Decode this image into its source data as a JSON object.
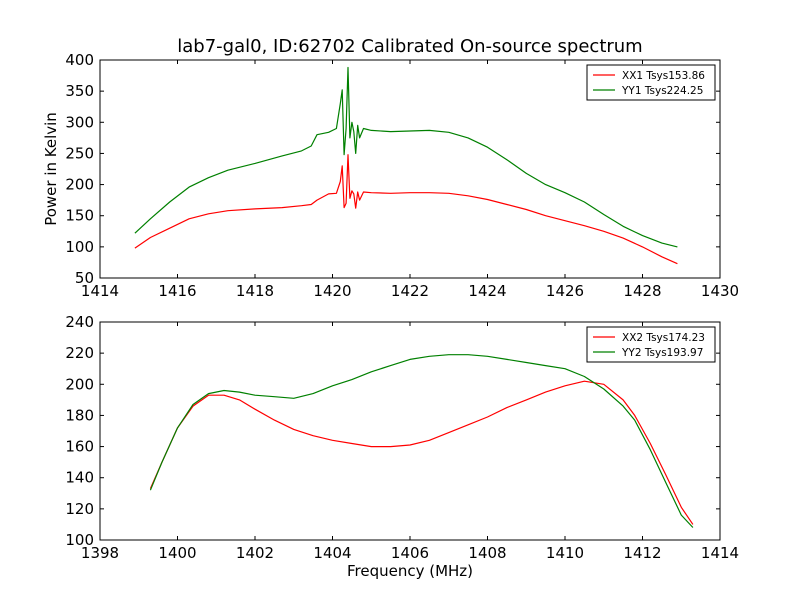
{
  "title": "lab7-gal0, ID:62702 Calibrated On-source spectrum",
  "colors": {
    "red": "#ff0000",
    "green": "#008000"
  },
  "chart_data": [
    {
      "type": "line",
      "title": "lab7-gal0, ID:62702 Calibrated On-source spectrum",
      "xlabel": "",
      "ylabel": "Power in Kelvin",
      "xlim": [
        1414,
        1430
      ],
      "ylim": [
        50,
        400
      ],
      "xticks": [
        1414,
        1416,
        1418,
        1420,
        1422,
        1424,
        1426,
        1428,
        1430
      ],
      "yticks": [
        50,
        100,
        150,
        200,
        250,
        300,
        350,
        400
      ],
      "grid": false,
      "legend_position": "top-right",
      "series": [
        {
          "name": "XX1 Tsys153.86",
          "color": "#ff0000",
          "x": [
            1414.9,
            1415.3,
            1415.8,
            1416.3,
            1416.8,
            1417.3,
            1418.0,
            1418.7,
            1419.2,
            1419.45,
            1419.6,
            1419.9,
            1420.1,
            1420.2,
            1420.25,
            1420.3,
            1420.35,
            1420.4,
            1420.45,
            1420.5,
            1420.55,
            1420.6,
            1420.65,
            1420.7,
            1420.8,
            1421.0,
            1421.5,
            1422.0,
            1422.5,
            1423.0,
            1423.5,
            1424.0,
            1424.5,
            1425.0,
            1425.5,
            1426.0,
            1426.5,
            1427.0,
            1427.5,
            1428.0,
            1428.5,
            1428.9
          ],
          "y": [
            98,
            115,
            130,
            145,
            153,
            158,
            161,
            163,
            166,
            168,
            175,
            185,
            186,
            205,
            230,
            163,
            170,
            248,
            178,
            190,
            185,
            162,
            188,
            175,
            188,
            187,
            186,
            187,
            187,
            186,
            182,
            176,
            168,
            160,
            150,
            142,
            134,
            125,
            114,
            100,
            84,
            73
          ]
        },
        {
          "name": "YY1 Tsys224.25",
          "color": "#008000",
          "x": [
            1414.9,
            1415.3,
            1415.8,
            1416.3,
            1416.8,
            1417.3,
            1418.0,
            1418.7,
            1419.2,
            1419.45,
            1419.6,
            1419.9,
            1420.1,
            1420.2,
            1420.25,
            1420.3,
            1420.35,
            1420.4,
            1420.45,
            1420.5,
            1420.55,
            1420.6,
            1420.65,
            1420.7,
            1420.8,
            1421.0,
            1421.5,
            1422.0,
            1422.5,
            1423.0,
            1423.5,
            1424.0,
            1424.5,
            1425.0,
            1425.5,
            1426.0,
            1426.5,
            1427.0,
            1427.5,
            1428.0,
            1428.5,
            1428.9
          ],
          "y": [
            122,
            145,
            172,
            196,
            211,
            223,
            234,
            246,
            254,
            262,
            280,
            284,
            290,
            330,
            352,
            248,
            290,
            388,
            275,
            300,
            285,
            250,
            295,
            275,
            290,
            287,
            285,
            286,
            287,
            284,
            275,
            260,
            240,
            218,
            200,
            187,
            172,
            152,
            133,
            118,
            106,
            100
          ]
        }
      ]
    },
    {
      "type": "line",
      "title": "",
      "xlabel": "Frequency (MHz)",
      "ylabel": "",
      "xlim": [
        1398,
        1414
      ],
      "ylim": [
        100,
        240
      ],
      "xticks": [
        1398,
        1400,
        1402,
        1404,
        1406,
        1408,
        1410,
        1412,
        1414
      ],
      "yticks": [
        100,
        120,
        140,
        160,
        180,
        200,
        220,
        240
      ],
      "grid": false,
      "legend_position": "top-right",
      "series": [
        {
          "name": "XX2 Tsys174.23",
          "color": "#ff0000",
          "x": [
            1399.3,
            1399.6,
            1400.0,
            1400.4,
            1400.8,
            1401.2,
            1401.6,
            1402.0,
            1402.5,
            1403.0,
            1403.5,
            1404.0,
            1404.5,
            1405.0,
            1405.5,
            1406.0,
            1406.5,
            1407.0,
            1407.5,
            1408.0,
            1408.5,
            1409.0,
            1409.5,
            1410.0,
            1410.5,
            1411.0,
            1411.5,
            1411.8,
            1412.2,
            1412.6,
            1413.0,
            1413.3
          ],
          "y": [
            133,
            150,
            172,
            186,
            193,
            193,
            190,
            184,
            177,
            171,
            167,
            164,
            162,
            160,
            160,
            161,
            164,
            169,
            174,
            179,
            185,
            190,
            195,
            199,
            202,
            200,
            190,
            180,
            162,
            142,
            121,
            110
          ]
        },
        {
          "name": "YY2 Tsys193.97",
          "color": "#008000",
          "x": [
            1399.3,
            1399.6,
            1400.0,
            1400.4,
            1400.8,
            1401.2,
            1401.6,
            1402.0,
            1402.5,
            1403.0,
            1403.5,
            1404.0,
            1404.5,
            1405.0,
            1405.5,
            1406.0,
            1406.5,
            1407.0,
            1407.5,
            1408.0,
            1408.5,
            1409.0,
            1409.5,
            1410.0,
            1410.5,
            1411.0,
            1411.5,
            1411.8,
            1412.2,
            1412.6,
            1413.0,
            1413.3
          ],
          "y": [
            132,
            150,
            172,
            187,
            194,
            196,
            195,
            193,
            192,
            191,
            194,
            199,
            203,
            208,
            212,
            216,
            218,
            219,
            219,
            218,
            216,
            214,
            212,
            210,
            205,
            197,
            186,
            177,
            158,
            137,
            116,
            108
          ]
        }
      ]
    }
  ]
}
